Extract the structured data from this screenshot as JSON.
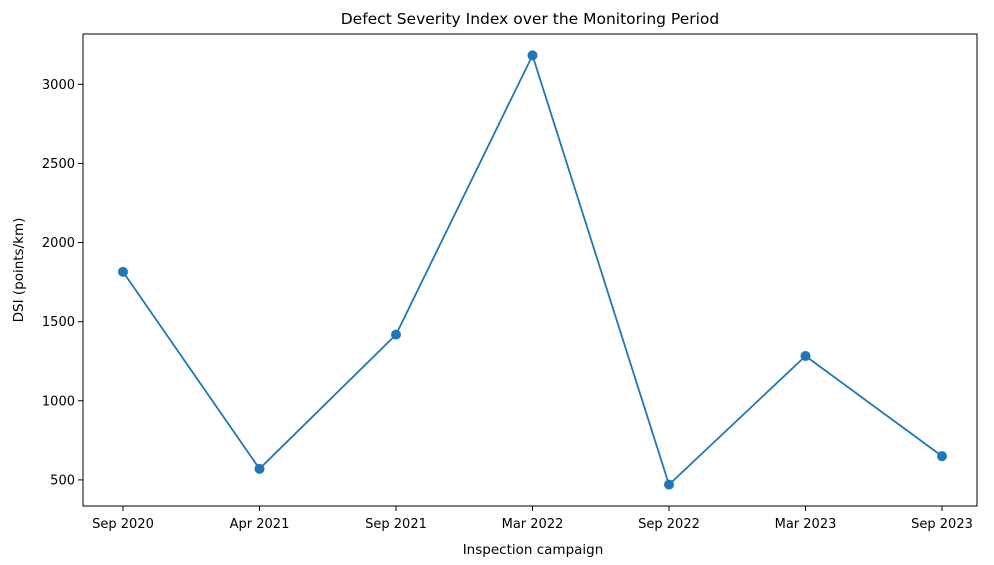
{
  "chart_data": {
    "type": "line",
    "title": "Defect Severity Index over the Monitoring Period",
    "xlabel": "Inspection campaign",
    "ylabel": "DSI (points/km)",
    "categories": [
      "Sep 2020",
      "Apr 2021",
      "Sep 2021",
      "Mar 2022",
      "Sep 2022",
      "Mar 2023",
      "Sep 2023"
    ],
    "series": [
      {
        "values": [
          1815,
          570,
          1418,
          3183,
          470,
          1283,
          650
        ]
      }
    ],
    "y_ticks": [
      500,
      1000,
      1500,
      2000,
      2500,
      3000
    ],
    "ylim": [
      335,
      3318
    ],
    "grid": false,
    "marker": "circle",
    "colors": {
      "line": "#1f77b4",
      "marker": "#1f77b4",
      "axes": "#000000"
    }
  }
}
